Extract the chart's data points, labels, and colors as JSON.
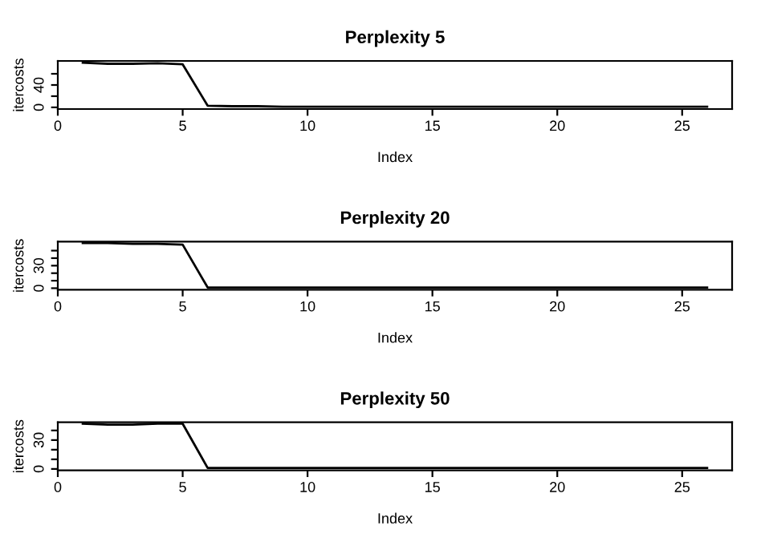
{
  "chart_data": [
    {
      "type": "line",
      "title": "Perplexity 5",
      "xlabel": "Index",
      "ylabel": "itercosts",
      "x": [
        1,
        2,
        3,
        4,
        5,
        6,
        7,
        8,
        9,
        10,
        11,
        12,
        13,
        14,
        15,
        16,
        17,
        18,
        19,
        20,
        21,
        22,
        23,
        24,
        25,
        26
      ],
      "values": [
        80,
        78,
        78,
        79,
        77,
        3,
        2,
        2,
        1,
        1,
        1,
        1,
        1,
        1,
        1,
        1,
        1,
        1,
        1,
        1,
        1,
        1,
        1,
        1,
        1,
        1
      ],
      "color": "#000000",
      "xlim": [
        0,
        27
      ],
      "ylim": [
        -3,
        83
      ],
      "xticks": [
        0,
        5,
        10,
        15,
        20,
        25
      ],
      "yticks": [
        0,
        {
          "value": 20,
          "label": null
        },
        40,
        {
          "value": 60,
          "label": null
        }
      ],
      "grid": false,
      "legend": false
    },
    {
      "type": "line",
      "title": "Perplexity 20",
      "xlabel": "Index",
      "ylabel": "itercosts",
      "x": [
        1,
        2,
        3,
        4,
        5,
        6,
        7,
        8,
        9,
        10,
        11,
        12,
        13,
        14,
        15,
        16,
        17,
        18,
        19,
        20,
        21,
        22,
        23,
        24,
        25,
        26
      ],
      "values": [
        60,
        60,
        59,
        59,
        58,
        1,
        1,
        1,
        1,
        1,
        1,
        1,
        1,
        1,
        1,
        1,
        1,
        1,
        1,
        1,
        1,
        1,
        1,
        1,
        1,
        1
      ],
      "color": "#000000",
      "xlim": [
        0,
        27
      ],
      "ylim": [
        -2,
        62
      ],
      "xticks": [
        0,
        5,
        10,
        15,
        20,
        25
      ],
      "yticks": [
        0,
        {
          "value": 10,
          "label": null
        },
        {
          "value": 20,
          "label": null
        },
        30,
        {
          "value": 40,
          "label": null
        },
        {
          "value": 50,
          "label": null
        }
      ],
      "grid": false,
      "legend": false
    },
    {
      "type": "line",
      "title": "Perplexity 50",
      "xlabel": "Index",
      "ylabel": "itercosts",
      "x": [
        1,
        2,
        3,
        4,
        5,
        6,
        7,
        8,
        9,
        10,
        11,
        12,
        13,
        14,
        15,
        16,
        17,
        18,
        19,
        20,
        21,
        22,
        23,
        24,
        25,
        26
      ],
      "values": [
        47,
        46,
        46,
        47,
        47,
        1,
        1,
        1,
        1,
        1,
        1,
        1,
        1,
        1,
        1,
        1,
        1,
        1,
        1,
        1,
        1,
        1,
        1,
        1,
        1,
        1
      ],
      "color": "#000000",
      "xlim": [
        0,
        27
      ],
      "ylim": [
        -1.5,
        48.5
      ],
      "xticks": [
        0,
        5,
        10,
        15,
        20,
        25
      ],
      "yticks": [
        0,
        {
          "value": 10,
          "label": null
        },
        {
          "value": 20,
          "label": null
        },
        30,
        {
          "value": 40,
          "label": null
        }
      ],
      "grid": false,
      "legend": false
    }
  ]
}
